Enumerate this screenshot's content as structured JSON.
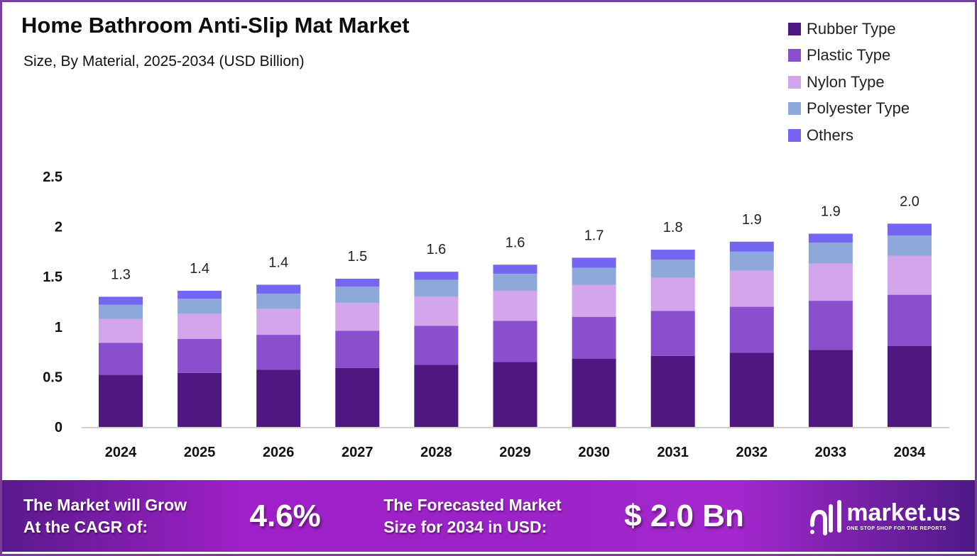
{
  "chart_data": {
    "type": "bar",
    "stacked": true,
    "title": "Home Bathroom Anti-Slip Mat Market",
    "subtitle": "Size, By Material, 2025-2034 (USD Billion)",
    "xlabel": "",
    "ylabel": "",
    "ylim": [
      0,
      2.5
    ],
    "yticks": [
      "0",
      "0.5",
      "1",
      "1.5",
      "2",
      "2.5"
    ],
    "grid": false,
    "legend_position": "top-right",
    "categories": [
      "2024",
      "2025",
      "2026",
      "2027",
      "2028",
      "2029",
      "2030",
      "2031",
      "2032",
      "2033",
      "2034"
    ],
    "totals_labels": [
      "1.3",
      "1.4",
      "1.4",
      "1.5",
      "1.6",
      "1.6",
      "1.7",
      "1.8",
      "1.9",
      "1.9",
      "2.0"
    ],
    "series": [
      {
        "name": "Rubber Type",
        "color": "#4f1780",
        "values": [
          0.52,
          0.54,
          0.57,
          0.59,
          0.62,
          0.65,
          0.68,
          0.71,
          0.74,
          0.77,
          0.81
        ]
      },
      {
        "name": "Plastic Type",
        "color": "#8a4fcc",
        "values": [
          0.32,
          0.34,
          0.35,
          0.37,
          0.39,
          0.41,
          0.42,
          0.45,
          0.46,
          0.49,
          0.51
        ]
      },
      {
        "name": "Nylon Type",
        "color": "#d3a6ec",
        "values": [
          0.24,
          0.25,
          0.26,
          0.28,
          0.29,
          0.3,
          0.32,
          0.33,
          0.36,
          0.37,
          0.39
        ]
      },
      {
        "name": "Polyester Type",
        "color": "#8fa8da",
        "values": [
          0.14,
          0.15,
          0.15,
          0.16,
          0.17,
          0.17,
          0.17,
          0.18,
          0.19,
          0.21,
          0.2
        ]
      },
      {
        "name": "Others",
        "color": "#7466f0",
        "values": [
          0.08,
          0.08,
          0.09,
          0.08,
          0.08,
          0.09,
          0.1,
          0.1,
          0.1,
          0.09,
          0.12
        ]
      }
    ]
  },
  "banner": {
    "cagr_label_1": "The Market will Grow",
    "cagr_label_2": "At the CAGR of:",
    "cagr_value": "4.6%",
    "forecast_label_1": "The Forecasted Market",
    "forecast_label_2": "Size for 2034 in USD:",
    "forecast_value": "$ 2.0 Bn",
    "logo_name": "market.us",
    "logo_tagline": "ONE STOP SHOP FOR THE REPORTS"
  }
}
